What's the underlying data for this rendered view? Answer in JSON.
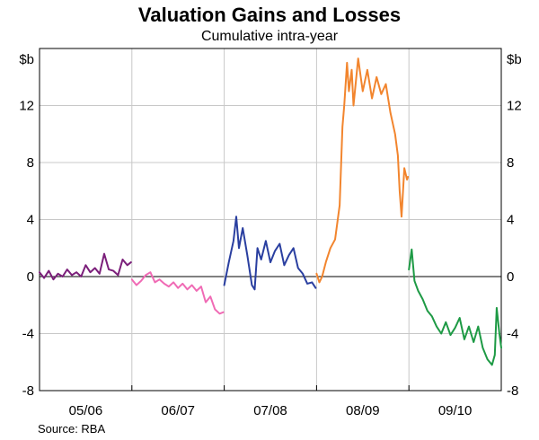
{
  "chart_data": {
    "type": "line",
    "title": "Valuation Gains and Losses",
    "subtitle": "Cumulative intra-year",
    "source": "Source: RBA",
    "y_unit_left": "$b",
    "y_unit_right": "$b",
    "ylim": [
      -8,
      16
    ],
    "yticks": [
      -8,
      -4,
      0,
      4,
      8,
      12
    ],
    "xlim": [
      0,
      5
    ],
    "x_categories": [
      "05/06",
      "06/07",
      "07/08",
      "08/09",
      "09/10"
    ],
    "grid": true,
    "legend": "none",
    "series": [
      {
        "color": "#7b1f7a",
        "x": [
          0.0,
          0.05,
          0.1,
          0.15,
          0.2,
          0.25,
          0.3,
          0.35,
          0.4,
          0.45,
          0.5,
          0.55,
          0.6,
          0.65,
          0.7,
          0.75,
          0.8,
          0.85,
          0.9,
          0.95,
          0.99
        ],
        "y": [
          0.3,
          -0.1,
          0.4,
          -0.2,
          0.2,
          0.0,
          0.5,
          0.1,
          0.3,
          0.0,
          0.8,
          0.3,
          0.6,
          0.2,
          1.6,
          0.5,
          0.4,
          0.1,
          1.2,
          0.8,
          1.0
        ]
      },
      {
        "color": "#f06bb5",
        "x": [
          1.0,
          1.05,
          1.1,
          1.15,
          1.2,
          1.25,
          1.3,
          1.35,
          1.4,
          1.45,
          1.5,
          1.55,
          1.6,
          1.65,
          1.7,
          1.75,
          1.8,
          1.85,
          1.9,
          1.95,
          1.99
        ],
        "y": [
          -0.2,
          -0.6,
          -0.3,
          0.1,
          0.3,
          -0.4,
          -0.2,
          -0.5,
          -0.7,
          -0.4,
          -0.8,
          -0.5,
          -0.9,
          -0.6,
          -1.0,
          -0.7,
          -1.8,
          -1.4,
          -2.3,
          -2.6,
          -2.5
        ]
      },
      {
        "color": "#2a3fa0",
        "x": [
          2.0,
          2.05,
          2.1,
          2.13,
          2.16,
          2.2,
          2.25,
          2.3,
          2.33,
          2.36,
          2.4,
          2.45,
          2.5,
          2.55,
          2.6,
          2.65,
          2.7,
          2.75,
          2.8,
          2.85,
          2.9,
          2.95,
          2.99
        ],
        "y": [
          -0.6,
          1.0,
          2.5,
          4.2,
          2.0,
          3.4,
          1.5,
          -0.6,
          -0.9,
          2.0,
          1.2,
          2.5,
          1.0,
          1.8,
          2.3,
          0.8,
          1.5,
          2.0,
          0.6,
          0.2,
          -0.5,
          -0.4,
          -0.8
        ]
      },
      {
        "color": "#f2852e",
        "x": [
          3.0,
          3.03,
          3.06,
          3.1,
          3.15,
          3.2,
          3.25,
          3.28,
          3.3,
          3.33,
          3.35,
          3.38,
          3.4,
          3.45,
          3.5,
          3.55,
          3.6,
          3.65,
          3.7,
          3.75,
          3.8,
          3.85,
          3.88,
          3.9,
          3.92,
          3.95,
          3.98,
          3.99
        ],
        "y": [
          0.2,
          -0.4,
          0.0,
          1.0,
          2.0,
          2.6,
          5.0,
          10.5,
          12.0,
          15.0,
          13.0,
          14.5,
          12.0,
          15.3,
          13.0,
          14.5,
          12.5,
          14.0,
          12.8,
          13.5,
          11.5,
          10.0,
          8.5,
          6.0,
          4.2,
          7.6,
          6.8,
          7.0
        ]
      },
      {
        "color": "#1e9a45",
        "x": [
          4.0,
          4.03,
          4.06,
          4.1,
          4.15,
          4.2,
          4.25,
          4.3,
          4.35,
          4.4,
          4.45,
          4.5,
          4.55,
          4.6,
          4.65,
          4.7,
          4.75,
          4.8,
          4.85,
          4.9,
          4.93,
          4.95,
          4.98,
          5.0
        ],
        "y": [
          0.5,
          1.9,
          -0.3,
          -1.0,
          -1.6,
          -2.4,
          -2.8,
          -3.5,
          -4.0,
          -3.2,
          -4.1,
          -3.6,
          -2.9,
          -4.4,
          -3.5,
          -4.6,
          -3.5,
          -5.0,
          -5.8,
          -6.2,
          -5.5,
          -2.2,
          -4.0,
          -5.0
        ]
      }
    ]
  }
}
